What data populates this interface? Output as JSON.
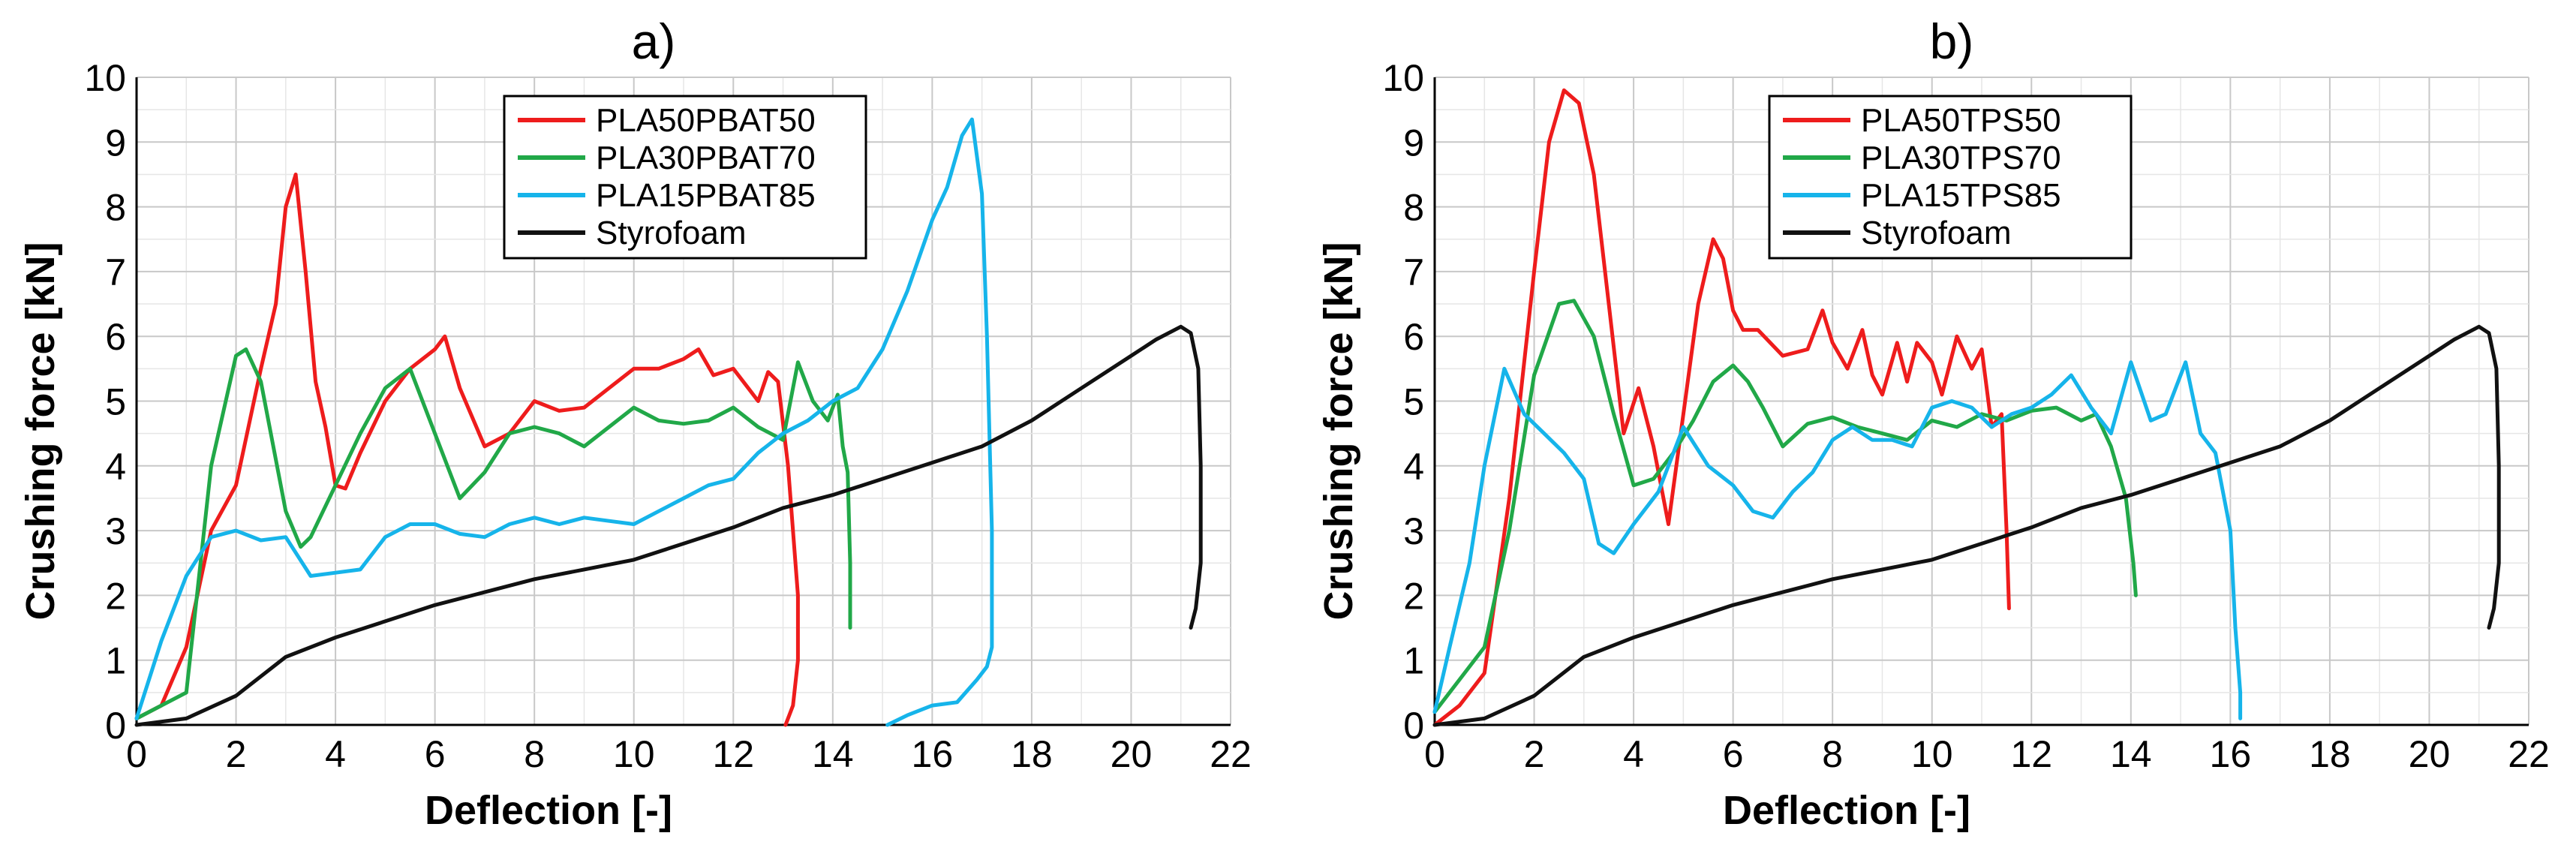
{
  "chart_data": [
    {
      "type": "line",
      "title": "a)",
      "xlabel": "Deflection [-]",
      "ylabel": "Crushing force [kN]",
      "xlim": [
        0,
        22
      ],
      "ylim": [
        0,
        10
      ],
      "xticks": [
        "0",
        "2",
        "4",
        "6",
        "8",
        "10",
        "12",
        "14",
        "16",
        "18",
        "20",
        "22"
      ],
      "yticks": [
        "0",
        "1",
        "2",
        "3",
        "4",
        "5",
        "6",
        "7",
        "8",
        "9",
        "10"
      ],
      "grid": true,
      "legend_position": "top-center",
      "series": [
        {
          "name": "PLA50PBAT50",
          "color": "#ee1c1c",
          "x": [
            0,
            0.5,
            1,
            1.5,
            2,
            2.5,
            2.8,
            3,
            3.2,
            3.4,
            3.6,
            3.8,
            4,
            4.2,
            4.5,
            5,
            5.5,
            6,
            6.2,
            6.5,
            7,
            7.5,
            8,
            8.5,
            9,
            9.5,
            10,
            10.5,
            11,
            11.3,
            11.6,
            12,
            12.3,
            12.5,
            12.7,
            12.9,
            13.1,
            13.3,
            13.3,
            13.2,
            13.05
          ],
          "y": [
            0.1,
            0.3,
            1.2,
            3,
            3.7,
            5.5,
            6.5,
            8,
            8.5,
            7,
            5.3,
            4.6,
            3.7,
            3.65,
            4.2,
            5,
            5.5,
            5.8,
            6,
            5.2,
            4.3,
            4.5,
            5,
            4.85,
            4.9,
            5.2,
            5.5,
            5.5,
            5.65,
            5.8,
            5.4,
            5.5,
            5.2,
            5,
            5.45,
            5.3,
            4,
            2,
            1,
            0.3,
            0
          ]
        },
        {
          "name": "PLA30PBAT70",
          "color": "#21a848",
          "x": [
            0,
            0.5,
            1,
            1.5,
            2,
            2.2,
            2.5,
            3,
            3.3,
            3.5,
            4,
            4.5,
            5,
            5.5,
            6,
            6.5,
            7,
            7.5,
            8,
            8.5,
            9,
            9.5,
            10,
            10.5,
            11,
            11.5,
            12,
            12.5,
            13,
            13.3,
            13.6,
            13.9,
            14.1,
            14.2,
            14.3,
            14.35,
            14.35
          ],
          "y": [
            0.1,
            0.3,
            0.5,
            4,
            5.7,
            5.8,
            5.3,
            3.3,
            2.75,
            2.9,
            3.7,
            4.5,
            5.2,
            5.5,
            4.5,
            3.5,
            3.9,
            4.5,
            4.6,
            4.5,
            4.3,
            4.6,
            4.9,
            4.7,
            4.65,
            4.7,
            4.9,
            4.6,
            4.4,
            5.6,
            5,
            4.7,
            5.1,
            4.3,
            3.9,
            2.5,
            1.5
          ]
        },
        {
          "name": "PLA15PBAT85",
          "color": "#16b4ea",
          "x": [
            0,
            0.5,
            1,
            1.5,
            2,
            2.5,
            3,
            3.5,
            4,
            4.5,
            5,
            5.5,
            6,
            6.5,
            7,
            7.5,
            8,
            8.5,
            9,
            9.5,
            10,
            10.5,
            11,
            11.5,
            12,
            12.5,
            13,
            13.5,
            14,
            14.5,
            15,
            15.5,
            16,
            16.3,
            16.6,
            16.8,
            17,
            17.1,
            17.2,
            17.2,
            17.1,
            16.9,
            16.5,
            16,
            15.5,
            15.1
          ],
          "y": [
            0.1,
            1.3,
            2.3,
            2.9,
            3,
            2.85,
            2.9,
            2.3,
            2.35,
            2.4,
            2.9,
            3.1,
            3.1,
            2.95,
            2.9,
            3.1,
            3.2,
            3.1,
            3.2,
            3.15,
            3.1,
            3.3,
            3.5,
            3.7,
            3.8,
            4.2,
            4.5,
            4.7,
            5,
            5.2,
            5.8,
            6.7,
            7.8,
            8.3,
            9.1,
            9.35,
            8.2,
            6,
            3,
            1.2,
            0.9,
            0.7,
            0.35,
            0.3,
            0.15,
            0
          ]
        },
        {
          "name": "Styrofoam",
          "color": "#111111",
          "x": [
            0,
            1,
            2,
            3,
            4,
            5,
            6,
            7,
            8,
            9,
            10,
            11,
            12,
            13,
            14,
            15,
            16,
            17,
            18,
            19,
            20,
            20.5,
            21,
            21.2,
            21.35,
            21.4,
            21.4,
            21.3,
            21.2
          ],
          "y": [
            0,
            0.1,
            0.45,
            1.05,
            1.35,
            1.6,
            1.85,
            2.05,
            2.25,
            2.4,
            2.55,
            2.8,
            3.05,
            3.35,
            3.55,
            3.8,
            4.05,
            4.3,
            4.7,
            5.2,
            5.7,
            5.95,
            6.15,
            6.05,
            5.5,
            4,
            2.5,
            1.8,
            1.5
          ]
        }
      ]
    },
    {
      "type": "line",
      "title": "b)",
      "xlabel": "Deflection [-]",
      "ylabel": "Crushing force [kN]",
      "xlim": [
        0,
        22
      ],
      "ylim": [
        0,
        10
      ],
      "xticks": [
        "0",
        "2",
        "4",
        "6",
        "8",
        "10",
        "12",
        "14",
        "16",
        "18",
        "20",
        "22"
      ],
      "yticks": [
        "0",
        "1",
        "2",
        "3",
        "4",
        "5",
        "6",
        "7",
        "8",
        "9",
        "10"
      ],
      "grid": true,
      "legend_position": "top-center",
      "series": [
        {
          "name": "PLA50TPS50",
          "color": "#ee1c1c",
          "x": [
            0,
            0.5,
            1,
            1.5,
            2,
            2.3,
            2.6,
            2.9,
            3.2,
            3.5,
            3.8,
            4.1,
            4.4,
            4.7,
            5,
            5.3,
            5.6,
            5.8,
            6,
            6.2,
            6.5,
            7,
            7.5,
            7.8,
            8,
            8.3,
            8.6,
            8.8,
            9,
            9.3,
            9.5,
            9.7,
            10,
            10.2,
            10.5,
            10.8,
            11,
            11.2,
            11.4,
            11.5,
            11.55
          ],
          "y": [
            0,
            0.3,
            0.8,
            3.5,
            7,
            9,
            9.8,
            9.6,
            8.5,
            6.5,
            4.5,
            5.2,
            4.3,
            3.1,
            4.8,
            6.5,
            7.5,
            7.2,
            6.4,
            6.1,
            6.1,
            5.7,
            5.8,
            6.4,
            5.9,
            5.5,
            6.1,
            5.4,
            5.1,
            5.9,
            5.3,
            5.9,
            5.6,
            5.1,
            6,
            5.5,
            5.8,
            4.6,
            4.8,
            3,
            1.8
          ]
        },
        {
          "name": "PLA30TPS70",
          "color": "#21a848",
          "x": [
            0,
            0.5,
            1,
            1.5,
            2,
            2.5,
            2.8,
            3.2,
            3.6,
            4,
            4.4,
            4.8,
            5.2,
            5.6,
            6,
            6.3,
            6.6,
            7,
            7.5,
            8,
            8.5,
            9,
            9.5,
            10,
            10.5,
            11,
            11.5,
            12,
            12.5,
            13,
            13.3,
            13.6,
            13.9,
            14.05,
            14.1
          ],
          "y": [
            0.2,
            0.7,
            1.2,
            3,
            5.4,
            6.5,
            6.55,
            6,
            4.8,
            3.7,
            3.8,
            4.2,
            4.7,
            5.3,
            5.55,
            5.3,
            4.9,
            4.3,
            4.65,
            4.75,
            4.6,
            4.5,
            4.4,
            4.7,
            4.6,
            4.8,
            4.7,
            4.85,
            4.9,
            4.7,
            4.8,
            4.3,
            3.5,
            2.5,
            2
          ]
        },
        {
          "name": "PLA15TPS85",
          "color": "#16b4ea",
          "x": [
            0,
            0.3,
            0.7,
            1,
            1.4,
            1.8,
            2.2,
            2.6,
            3,
            3.3,
            3.6,
            4,
            4.5,
            5,
            5.5,
            6,
            6.4,
            6.8,
            7.2,
            7.6,
            8,
            8.4,
            8.8,
            9.2,
            9.6,
            10,
            10.4,
            10.8,
            11.2,
            11.6,
            12,
            12.4,
            12.8,
            13.2,
            13.6,
            14,
            14.4,
            14.7,
            15.1,
            15.4,
            15.7,
            16,
            16.1,
            16.2,
            16.2
          ],
          "y": [
            0.2,
            1.2,
            2.5,
            4,
            5.5,
            4.8,
            4.5,
            4.2,
            3.8,
            2.8,
            2.65,
            3.1,
            3.6,
            4.6,
            4,
            3.7,
            3.3,
            3.2,
            3.6,
            3.9,
            4.4,
            4.6,
            4.4,
            4.4,
            4.3,
            4.9,
            5,
            4.9,
            4.6,
            4.8,
            4.9,
            5.1,
            5.4,
            4.9,
            4.5,
            5.6,
            4.7,
            4.8,
            5.6,
            4.5,
            4.2,
            3,
            1.5,
            0.5,
            0.1
          ]
        },
        {
          "name": "Styrofoam",
          "color": "#111111",
          "x": [
            0,
            1,
            2,
            3,
            4,
            5,
            6,
            7,
            8,
            9,
            10,
            11,
            12,
            13,
            14,
            15,
            16,
            17,
            18,
            19,
            20,
            20.5,
            21,
            21.2,
            21.35,
            21.4,
            21.4,
            21.3,
            21.2
          ],
          "y": [
            0,
            0.1,
            0.45,
            1.05,
            1.35,
            1.6,
            1.85,
            2.05,
            2.25,
            2.4,
            2.55,
            2.8,
            3.05,
            3.35,
            3.55,
            3.8,
            4.05,
            4.3,
            4.7,
            5.2,
            5.7,
            5.95,
            6.15,
            6.05,
            5.5,
            4,
            2.5,
            1.8,
            1.5
          ]
        }
      ]
    }
  ]
}
